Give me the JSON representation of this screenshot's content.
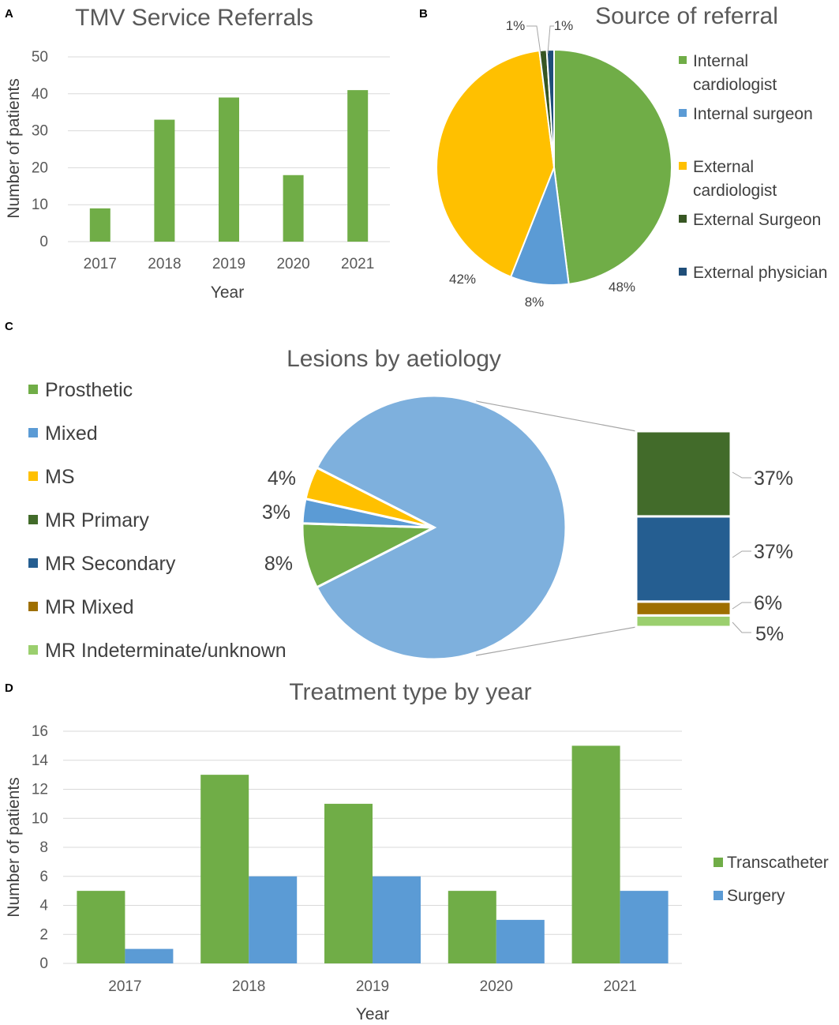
{
  "chart_data": [
    {
      "panel": "A",
      "type": "bar",
      "title": "TMV Service Referrals",
      "categories": [
        "2017",
        "2018",
        "2019",
        "2020",
        "2021"
      ],
      "values": [
        9,
        33,
        39,
        18,
        41
      ],
      "xlabel": "Year",
      "ylabel": "Number of patients",
      "ylim": [
        0,
        50
      ],
      "yticks": [
        "0",
        "10",
        "20",
        "30",
        "40",
        "50"
      ],
      "grid": true,
      "color": "#70ad47"
    },
    {
      "panel": "B",
      "type": "pie",
      "title": "Source of referral",
      "labels": [
        "Internal cardiologist",
        "Internal surgeon",
        "External cardiologist",
        "External Surgeon",
        "External physician"
      ],
      "legend_lines": [
        [
          "Internal",
          "cardiologist"
        ],
        [
          "Internal surgeon"
        ],
        [
          "External",
          "cardiologist"
        ],
        [
          "External Surgeon"
        ],
        [
          "External physician"
        ]
      ],
      "values": [
        48,
        8,
        42,
        1,
        1
      ],
      "value_labels": [
        "48%",
        "8%",
        "42%",
        "1%",
        "1%"
      ],
      "colors": [
        "#70ad47",
        "#5b9bd5",
        "#ffc000",
        "#375623",
        "#1f4e79"
      ],
      "legend": "right"
    },
    {
      "panel": "C",
      "type": "pie",
      "subtype": "bar-of-pie",
      "title": "Lesions by aetiology",
      "labels": [
        "Prosthetic",
        "Mixed",
        "MS",
        "MR Primary",
        "MR Secondary",
        "MR Mixed",
        "MR Indeterminate/unknown"
      ],
      "colors": [
        "#70ad47",
        "#5b9bd5",
        "#ffc000",
        "#426b2a",
        "#255e91",
        "#9e6f00",
        "#9bcf6e"
      ],
      "pie_values": [
        8,
        3,
        4
      ],
      "pie_value_labels": [
        "8%",
        "3%",
        "4%"
      ],
      "pie_other_color": "#7eb0dd",
      "bar_values": [
        37,
        37,
        6,
        5
      ],
      "bar_value_labels": [
        "37%",
        "37%",
        "6%",
        "5%"
      ],
      "legend": "left"
    },
    {
      "panel": "D",
      "type": "bar",
      "title": "Treatment type by year",
      "categories": [
        "2017",
        "2018",
        "2019",
        "2020",
        "2021"
      ],
      "series": [
        {
          "name": "Transcatheter",
          "values": [
            5,
            13,
            11,
            5,
            15
          ],
          "color": "#70ad47"
        },
        {
          "name": "Surgery",
          "values": [
            1,
            6,
            6,
            3,
            5
          ],
          "color": "#5b9bd5"
        }
      ],
      "xlabel": "Year",
      "ylabel": "Number of patients",
      "ylim": [
        0,
        16
      ],
      "yticks": [
        "0",
        "2",
        "4",
        "6",
        "8",
        "10",
        "12",
        "14",
        "16"
      ],
      "grid": true,
      "legend": "right"
    }
  ]
}
